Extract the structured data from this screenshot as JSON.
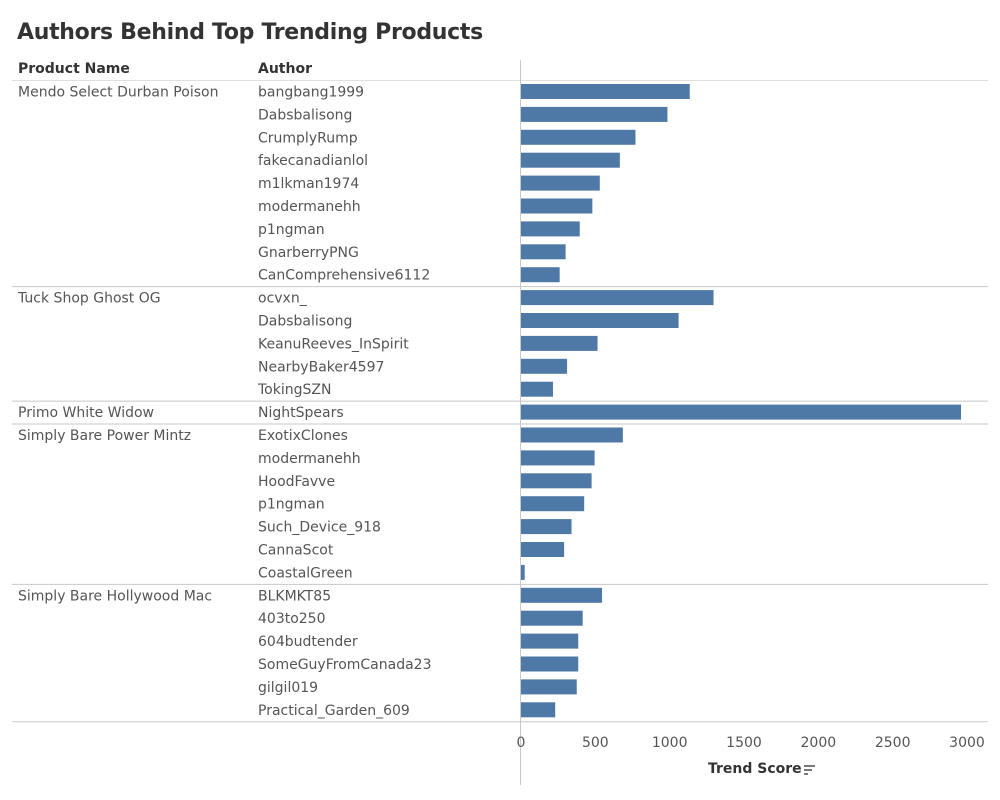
{
  "title": "Authors Behind Top Trending Products",
  "columns": {
    "product": "Product Name",
    "author": "Author"
  },
  "bar_color": "#4E79A7",
  "chart_data": {
    "type": "bar",
    "orientation": "horizontal",
    "title": "Authors Behind Top Trending Products",
    "xlabel": "Trend Score",
    "xlim": [
      0,
      3000
    ],
    "xticks": [
      0,
      500,
      1000,
      1500,
      2000,
      2500,
      3000
    ],
    "grid": false,
    "groups": [
      {
        "product": "Mendo Select Durban Poison",
        "rows": [
          {
            "author": "bangbang1999",
            "value": 1135
          },
          {
            "author": "Dabsbalisong",
            "value": 985
          },
          {
            "author": "CrumplyRump",
            "value": 770
          },
          {
            "author": "fakecanadianlol",
            "value": 665
          },
          {
            "author": "m1lkman1974",
            "value": 530
          },
          {
            "author": "modermanehh",
            "value": 480
          },
          {
            "author": "p1ngman",
            "value": 395
          },
          {
            "author": "GnarberryPNG",
            "value": 300
          },
          {
            "author": "CanComprehensive6112",
            "value": 260
          }
        ]
      },
      {
        "product": "Tuck Shop Ghost OG",
        "rows": [
          {
            "author": "ocvxn_",
            "value": 1295
          },
          {
            "author": "Dabsbalisong",
            "value": 1060
          },
          {
            "author": "KeanuReeves_InSpirit",
            "value": 515
          },
          {
            "author": "NearbyBaker4597",
            "value": 310
          },
          {
            "author": "TokingSZN",
            "value": 215
          }
        ]
      },
      {
        "product": "Primo White Widow",
        "rows": [
          {
            "author": "NightSpears",
            "value": 2960
          }
        ]
      },
      {
        "product": "Simply Bare Power Mintz",
        "rows": [
          {
            "author": "ExotixClones",
            "value": 685
          },
          {
            "author": "modermanehh",
            "value": 495
          },
          {
            "author": "HoodFavve",
            "value": 475
          },
          {
            "author": "p1ngman",
            "value": 425
          },
          {
            "author": "Such_Device_918",
            "value": 340
          },
          {
            "author": "CannaScot",
            "value": 290
          },
          {
            "author": "CoastalGreen",
            "value": 25
          }
        ]
      },
      {
        "product": "Simply Bare Hollywood Mac",
        "rows": [
          {
            "author": "BLKMKT85",
            "value": 545
          },
          {
            "author": "403to250",
            "value": 415
          },
          {
            "author": "604budtender",
            "value": 385
          },
          {
            "author": "SomeGuyFromCanada23",
            "value": 385
          },
          {
            "author": "gilgil019",
            "value": 375
          },
          {
            "author": "Practical_Garden_609",
            "value": 230
          }
        ]
      }
    ]
  }
}
